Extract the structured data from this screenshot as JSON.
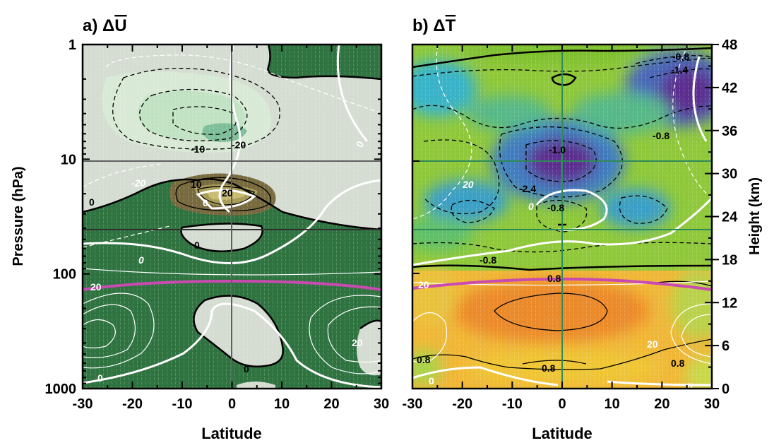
{
  "chart_data": [
    {
      "type": "heatmap",
      "panel_label": "a) ΔU̅",
      "panel_letter": "a)",
      "symbol": "U",
      "xlabel": "Latitude",
      "ylabel": "Pressure (hPa)",
      "x_ticks": [
        "-30",
        "-20",
        "-10",
        "0",
        "10",
        "20",
        "30"
      ],
      "y_ticks": [
        "1",
        "10",
        "100",
        "1000"
      ],
      "y_scale": "log",
      "xlim": [
        -30,
        30
      ],
      "ylim": [
        1000,
        1
      ],
      "contour_labels": [
        "0",
        "0",
        "0",
        "0",
        "0",
        "0",
        "-20",
        "-10",
        "-20",
        "0",
        "10",
        "20",
        "20",
        "20"
      ],
      "colors": {
        "positive": "#2f7340",
        "negative": "#d5dcd2",
        "strong_negative": "#7fbe9a",
        "strong_positive": "#776a3f",
        "tropopause": "#c94ab0"
      }
    },
    {
      "type": "heatmap",
      "panel_label": "b) ΔT̅",
      "panel_letter": "b)",
      "symbol": "T",
      "xlabel": "Latitude",
      "ylabel": "Height (km)",
      "x_ticks": [
        "-30",
        "-20",
        "-10",
        "0",
        "10",
        "20",
        "30"
      ],
      "y_ticks": [
        "0",
        "6",
        "12",
        "18",
        "24",
        "30",
        "36",
        "42",
        "48"
      ],
      "xlim": [
        -30,
        30
      ],
      "ylim": [
        0,
        48
      ],
      "contour_labels": [
        "-0.8",
        "-1.4",
        "-0.8",
        "-1.0",
        "-2.4",
        "-0.8",
        "-0.8",
        "20",
        "0",
        "0.8",
        "20",
        "0.8",
        "0.8",
        "20",
        "0",
        "0",
        "0.8"
      ],
      "colors": {
        "warm": "#eb8a2c",
        "warm_light": "#f0c040",
        "neutral": "#8fc83a",
        "cool": "#3a9fc6",
        "cold": "#5b2d8f",
        "tropopause": "#c94ab0"
      }
    }
  ]
}
